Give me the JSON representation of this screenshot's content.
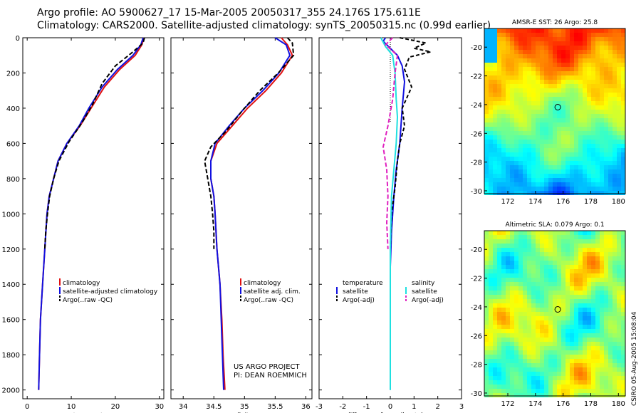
{
  "header": {
    "line1": "Argo profile: AO 5900627_17 15-Mar-2005 20050317_355 24.176S 175.611E",
    "line2": "Climatology: CARS2000. Satellite-adjusted climatology: synTS_20050315.nc (0.99d earlier)"
  },
  "credits": {
    "line1": "US ARGO PROJECT",
    "line2": "PI: DEAN ROEMMICH"
  },
  "side_label": "CSIRO 05-Aug-2005 15:08:04",
  "colors": {
    "climatology": "#e01010",
    "satellite": "#1010e0",
    "argo": "#000000",
    "salinity_sat": "#20e0e0",
    "salinity_argo": "#e020c0"
  },
  "chart_data": [
    {
      "type": "line",
      "id": "temperature",
      "xlabel": "temperature",
      "ylabel": "",
      "xlim": [
        -1,
        31
      ],
      "ylim": [
        2050,
        0
      ],
      "x_ticks": [
        0,
        10,
        20,
        30
      ],
      "y_ticks": [
        0,
        200,
        400,
        600,
        800,
        1000,
        1200,
        1400,
        1600,
        1800,
        2000
      ],
      "legend_position": "lower-middle",
      "series": [
        {
          "name": "climatology",
          "color": "#e01010",
          "dash": "",
          "points": [
            [
              26.5,
              0
            ],
            [
              26,
              40
            ],
            [
              24.5,
              100
            ],
            [
              21,
              180
            ],
            [
              17.5,
              280
            ],
            [
              14.5,
              400
            ],
            [
              12,
              500
            ],
            [
              9,
              600
            ],
            [
              7,
              700
            ],
            [
              6,
              800
            ],
            [
              5,
              900
            ],
            [
              4.5,
              1000
            ],
            [
              4,
              1200
            ],
            [
              3.5,
              1400
            ],
            [
              3,
              1600
            ],
            [
              2.8,
              1800
            ],
            [
              2.6,
              2000
            ]
          ]
        },
        {
          "name": "satellite-adjusted climatology",
          "color": "#1010e0",
          "dash": "",
          "points": [
            [
              26.3,
              0
            ],
            [
              25.8,
              40
            ],
            [
              24,
              100
            ],
            [
              20.5,
              180
            ],
            [
              17,
              280
            ],
            [
              14,
              400
            ],
            [
              11.8,
              500
            ],
            [
              9,
              600
            ],
            [
              7,
              700
            ],
            [
              6,
              800
            ],
            [
              5,
              900
            ],
            [
              4.5,
              1000
            ],
            [
              4,
              1200
            ],
            [
              3.5,
              1400
            ],
            [
              3,
              1600
            ],
            [
              2.8,
              1800
            ],
            [
              2.6,
              2000
            ]
          ]
        },
        {
          "name": "Argo(..raw -QC)",
          "color": "#000000",
          "dash": "6,3",
          "points": [
            [
              26.6,
              0
            ],
            [
              26.3,
              30
            ],
            [
              24,
              80
            ],
            [
              20,
              160
            ],
            [
              17,
              260
            ],
            [
              14.8,
              380
            ],
            [
              12.5,
              480
            ],
            [
              9.5,
              590
            ],
            [
              7.2,
              700
            ],
            [
              6,
              800
            ],
            [
              5.1,
              900
            ],
            [
              4.6,
              1000
            ],
            [
              4.2,
              1100
            ],
            [
              4,
              1200
            ]
          ]
        }
      ]
    },
    {
      "type": "line",
      "id": "salinity",
      "xlabel": "salinity",
      "ylabel": "",
      "xlim": [
        33.8,
        36.1
      ],
      "ylim": [
        2050,
        0
      ],
      "x_ticks": [
        34,
        34.5,
        35,
        35.5,
        36
      ],
      "y_ticks": [
        0,
        200,
        400,
        600,
        800,
        1000,
        1200,
        1400,
        1600,
        1800,
        2000
      ],
      "legend_position": "lower-middle",
      "series": [
        {
          "name": "climatology",
          "color": "#e01010",
          "dash": "",
          "points": [
            [
              35.6,
              0
            ],
            [
              35.7,
              40
            ],
            [
              35.78,
              100
            ],
            [
              35.6,
              200
            ],
            [
              35.35,
              300
            ],
            [
              35.05,
              400
            ],
            [
              34.8,
              500
            ],
            [
              34.55,
              600
            ],
            [
              34.45,
              700
            ],
            [
              34.45,
              800
            ],
            [
              34.5,
              900
            ],
            [
              34.52,
              1000
            ],
            [
              34.55,
              1200
            ],
            [
              34.6,
              1400
            ],
            [
              34.63,
              1600
            ],
            [
              34.65,
              1800
            ],
            [
              34.68,
              2000
            ]
          ]
        },
        {
          "name": "satellite adj. clim.",
          "color": "#1010e0",
          "dash": "",
          "points": [
            [
              35.5,
              0
            ],
            [
              35.68,
              40
            ],
            [
              35.74,
              100
            ],
            [
              35.56,
              200
            ],
            [
              35.3,
              300
            ],
            [
              35.0,
              400
            ],
            [
              34.75,
              500
            ],
            [
              34.52,
              600
            ],
            [
              34.45,
              700
            ],
            [
              34.45,
              800
            ],
            [
              34.5,
              900
            ],
            [
              34.52,
              1000
            ],
            [
              34.55,
              1200
            ],
            [
              34.6,
              1400
            ],
            [
              34.62,
              1600
            ],
            [
              34.64,
              1800
            ],
            [
              34.66,
              2000
            ]
          ]
        },
        {
          "name": "Argo(..raw -QC)",
          "color": "#000000",
          "dash": "6,3",
          "points": [
            [
              35.7,
              0
            ],
            [
              35.78,
              30
            ],
            [
              35.8,
              100
            ],
            [
              35.55,
              200
            ],
            [
              35.25,
              300
            ],
            [
              34.95,
              420
            ],
            [
              34.7,
              530
            ],
            [
              34.45,
              620
            ],
            [
              34.35,
              700
            ],
            [
              34.4,
              800
            ],
            [
              34.45,
              900
            ],
            [
              34.48,
              1000
            ],
            [
              34.5,
              1100
            ],
            [
              34.5,
              1200
            ]
          ]
        }
      ]
    },
    {
      "type": "line",
      "id": "difference",
      "xlabel": "difference from climatology",
      "ylabel": "",
      "xlim": [
        -3,
        3
      ],
      "ylim": [
        2050,
        0
      ],
      "x_ticks": [
        -3,
        -2,
        -1,
        0,
        1,
        2,
        3
      ],
      "y_ticks": [
        0,
        200,
        400,
        600,
        800,
        1000,
        1200,
        1400,
        1600,
        1800,
        2000
      ],
      "legend_position": "lower-middle",
      "legend_groups": [
        {
          "title": "temperature",
          "entries": [
            "satellite",
            "Argo(-adj)"
          ]
        },
        {
          "title": "salinity",
          "entries": [
            "satellite",
            "Argo(-adj)"
          ]
        }
      ],
      "series": [
        {
          "name": "temperature satellite",
          "color": "#1010e0",
          "dash": "",
          "points": [
            [
              -0.2,
              0
            ],
            [
              -0.3,
              20
            ],
            [
              0,
              60
            ],
            [
              0.3,
              100
            ],
            [
              0.5,
              160
            ],
            [
              0.6,
              250
            ],
            [
              0.5,
              400
            ],
            [
              0.4,
              600
            ],
            [
              0.25,
              750
            ],
            [
              0.15,
              900
            ],
            [
              0.05,
              1100
            ],
            [
              0,
              1300
            ],
            [
              0,
              2000
            ]
          ]
        },
        {
          "name": "temperature Argo(-adj)",
          "color": "#000000",
          "dash": "5,3",
          "points": [
            [
              0.4,
              0
            ],
            [
              1.5,
              30
            ],
            [
              1.0,
              60
            ],
            [
              1.7,
              80
            ],
            [
              0.8,
              110
            ],
            [
              0.6,
              180
            ],
            [
              0.9,
              280
            ],
            [
              0.5,
              400
            ],
            [
              0.6,
              500
            ],
            [
              0.4,
              600
            ],
            [
              0.3,
              700
            ],
            [
              0.2,
              850
            ],
            [
              0.05,
              1000
            ],
            [
              0,
              1200
            ]
          ]
        },
        {
          "name": "salinity satellite",
          "color": "#20e0e0",
          "dash": "",
          "points": [
            [
              -0.4,
              0
            ],
            [
              -0.2,
              50
            ],
            [
              0.1,
              100
            ],
            [
              0.2,
              200
            ],
            [
              0.25,
              350
            ],
            [
              0.3,
              450
            ],
            [
              0.25,
              600
            ],
            [
              0.15,
              750
            ],
            [
              0.05,
              900
            ],
            [
              0,
              1200
            ],
            [
              0,
              2000
            ]
          ]
        },
        {
          "name": "salinity Argo(-adj)",
          "color": "#e020c0",
          "dash": "6,3",
          "points": [
            [
              0.1,
              0
            ],
            [
              -0.2,
              40
            ],
            [
              0.3,
              100
            ],
            [
              0.2,
              200
            ],
            [
              0.1,
              350
            ],
            [
              -0.1,
              500
            ],
            [
              -0.3,
              620
            ],
            [
              -0.15,
              750
            ],
            [
              -0.1,
              900
            ],
            [
              -0.15,
              1050
            ],
            [
              -0.1,
              1200
            ]
          ]
        }
      ]
    },
    {
      "type": "heatmap",
      "id": "sst_map",
      "title": "AMSR-E SST: 26 Argo: 25.8",
      "xlim": [
        170.3,
        180.5
      ],
      "ylim": [
        -30.2,
        -18.7
      ],
      "x_ticks": [
        172,
        174,
        176,
        178,
        180
      ],
      "y_ticks": [
        -20,
        -22,
        -24,
        -26,
        -28,
        -30
      ],
      "marker": {
        "lon": 175.611,
        "lat": -24.176
      }
    },
    {
      "type": "heatmap",
      "id": "sla_map",
      "title": "Altimetric SLA: 0.079 Argo: 0.1",
      "xlim": [
        170.3,
        180.5
      ],
      "ylim": [
        -30.2,
        -18.7
      ],
      "x_ticks": [
        172,
        174,
        176,
        178,
        180
      ],
      "y_ticks": [
        -20,
        -22,
        -24,
        -26,
        -28,
        -30
      ],
      "marker": {
        "lon": 175.611,
        "lat": -24.176
      }
    }
  ]
}
